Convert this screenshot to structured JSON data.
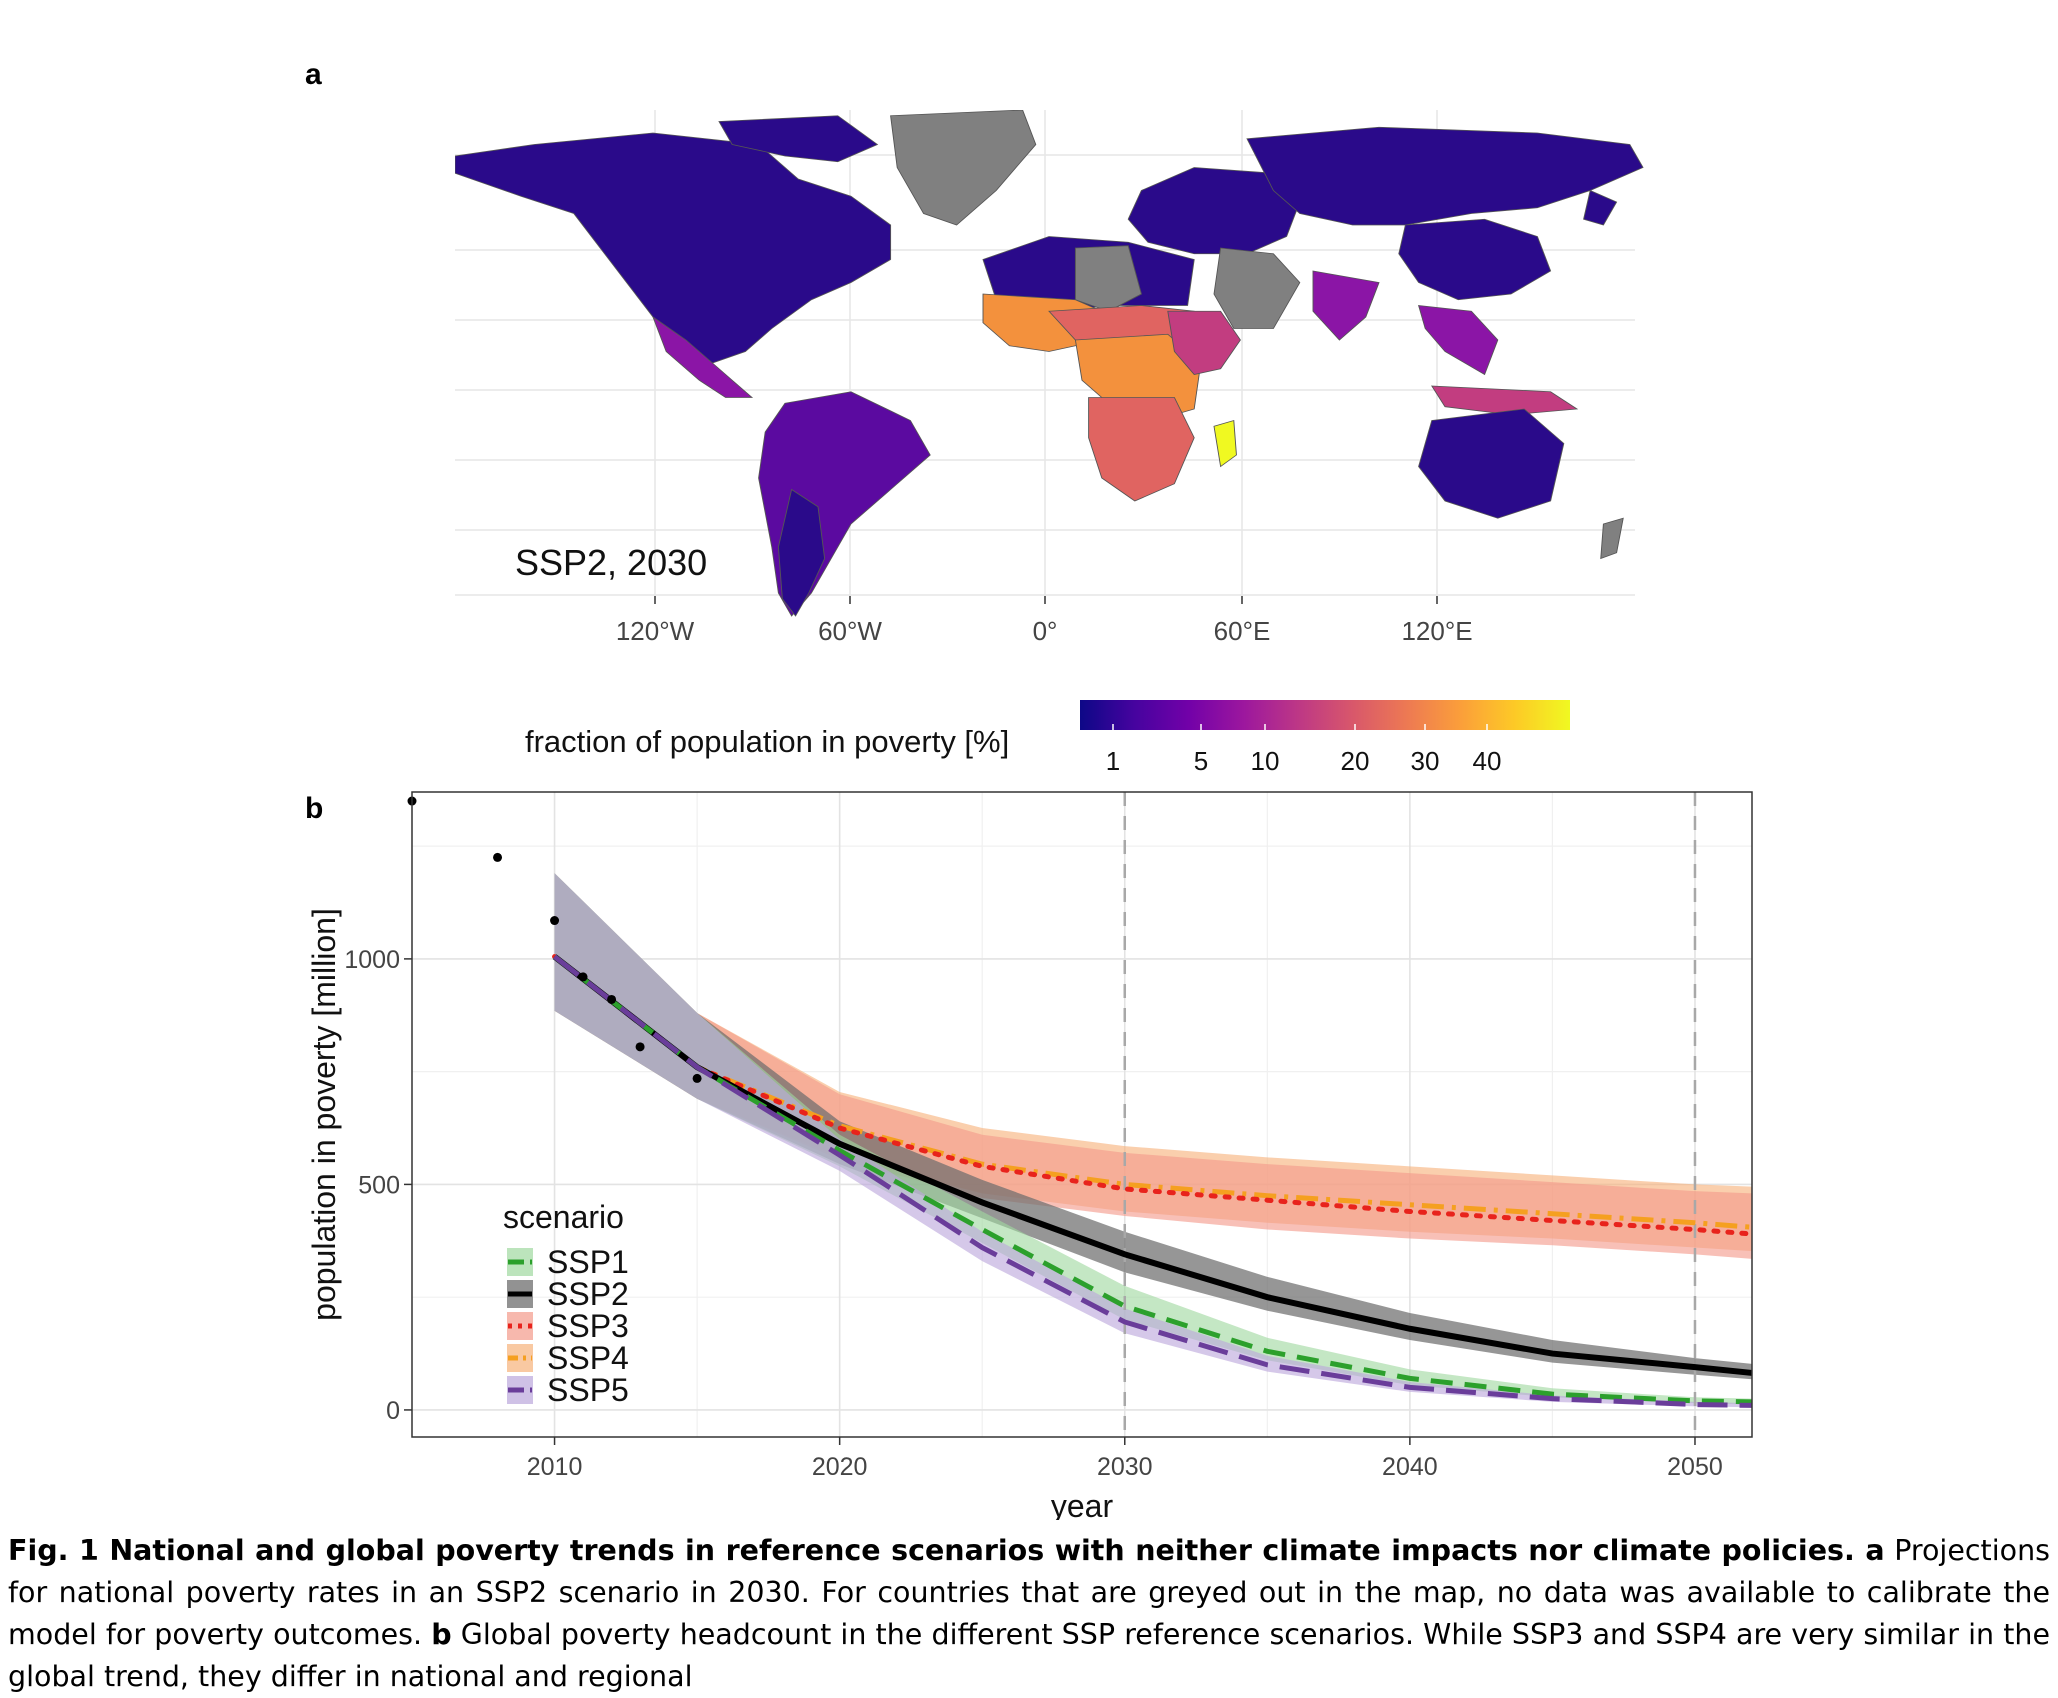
{
  "panel_a": {
    "letter": "a",
    "annotation": "SSP2, 2030",
    "lon_ticks": [
      "120°W",
      "60°W",
      "0°",
      "60°E",
      "120°E"
    ],
    "colors": {
      "grey": "#808080",
      "dark": "#2a0a8a",
      "purple": "#5b0aa0",
      "magenta": "#8b15a6",
      "pink": "#c23d80",
      "coral": "#e06461",
      "orange": "#f3913d",
      "yellow": "#f0f921"
    },
    "colorbar": {
      "label": "fraction of population in poverty [%]",
      "ticks": [
        "1",
        "5",
        "10",
        "20",
        "30",
        "40"
      ],
      "stops": [
        "#0d0887",
        "#46039f",
        "#7201a8",
        "#9c179e",
        "#bd3786",
        "#d8576b",
        "#ed7953",
        "#fb9f3a",
        "#fdca26",
        "#f0f921"
      ]
    }
  },
  "panel_b": {
    "letter": "b"
  },
  "chart_data": {
    "type": "line",
    "title": "",
    "xlabel": "year",
    "ylabel": "population in poverty [million]",
    "xlim": [
      2005,
      2052
    ],
    "ylim": [
      -60,
      1370
    ],
    "x_ticks": [
      "2010",
      "2020",
      "2030",
      "2040",
      "2050"
    ],
    "x_tick_values": [
      2010,
      2020,
      2030,
      2040,
      2050
    ],
    "y_ticks": [
      "0",
      "500",
      "1000"
    ],
    "y_tick_values": [
      0,
      500,
      1000
    ],
    "vlines": [
      2030,
      2050
    ],
    "grid": true,
    "legend_title": "scenario",
    "legend_position": "bottom-left",
    "observed": {
      "x": [
        2005,
        2008,
        2010,
        2011,
        2012,
        2013,
        2015
      ],
      "y": [
        1350,
        1225,
        1085,
        960,
        910,
        805,
        735
      ]
    },
    "series": [
      {
        "name": "SSP4",
        "color": "#f5a020",
        "band_color": "#f7b27a",
        "x": [
          2010,
          2015,
          2020,
          2025,
          2030,
          2035,
          2040,
          2045,
          2050,
          2052
        ],
        "y": [
          1005,
          760,
          630,
          545,
          500,
          475,
          455,
          435,
          415,
          405
        ],
        "lower": [
          885,
          690,
          560,
          480,
          440,
          415,
          395,
          380,
          360,
          352
        ],
        "upper": [
          1185,
          880,
          705,
          625,
          585,
          560,
          540,
          520,
          500,
          495
        ]
      },
      {
        "name": "SSP3",
        "color": "#e8231c",
        "band_color": "#f39a8a",
        "x": [
          2010,
          2015,
          2020,
          2025,
          2030,
          2035,
          2040,
          2045,
          2050,
          2052
        ],
        "y": [
          1005,
          760,
          625,
          540,
          490,
          465,
          440,
          420,
          400,
          390
        ],
        "lower": [
          885,
          690,
          555,
          470,
          430,
          400,
          380,
          365,
          345,
          335
        ],
        "upper": [
          1190,
          880,
          700,
          610,
          570,
          545,
          525,
          505,
          485,
          480
        ]
      },
      {
        "name": "SSP2",
        "color": "#000000",
        "band_color": "#6e6e6e",
        "x": [
          2010,
          2015,
          2020,
          2025,
          2030,
          2035,
          2040,
          2045,
          2050,
          2052
        ],
        "y": [
          1005,
          760,
          590,
          460,
          345,
          250,
          180,
          125,
          95,
          82
        ],
        "lower": [
          885,
          690,
          545,
          425,
          305,
          220,
          155,
          105,
          78,
          68
        ],
        "upper": [
          1190,
          880,
          640,
          510,
          395,
          295,
          215,
          155,
          115,
          102
        ]
      },
      {
        "name": "SSP1",
        "color": "#2ca02c",
        "band_color": "#9fd89f",
        "x": [
          2010,
          2015,
          2020,
          2025,
          2030,
          2035,
          2040,
          2045,
          2050,
          2052
        ],
        "y": [
          1005,
          760,
          575,
          400,
          230,
          130,
          70,
          35,
          20,
          18
        ],
        "lower": [
          885,
          690,
          540,
          370,
          200,
          110,
          55,
          28,
          15,
          12
        ],
        "upper": [
          1190,
          880,
          610,
          440,
          275,
          160,
          90,
          48,
          28,
          25
        ]
      },
      {
        "name": "SSP5",
        "color": "#6a3d9a",
        "band_color": "#bba6dc",
        "x": [
          2010,
          2015,
          2020,
          2025,
          2030,
          2035,
          2040,
          2045,
          2050,
          2052
        ],
        "y": [
          1005,
          760,
          565,
          360,
          195,
          100,
          50,
          25,
          12,
          10
        ],
        "lower": [
          885,
          690,
          530,
          330,
          170,
          85,
          40,
          18,
          8,
          6
        ],
        "upper": [
          1190,
          880,
          600,
          395,
          225,
          120,
          62,
          32,
          18,
          15
        ]
      }
    ],
    "legend_order": [
      "SSP1",
      "SSP2",
      "SSP3",
      "SSP4",
      "SSP5"
    ]
  },
  "caption": {
    "label": "Fig. 1",
    "title": "National and global poverty trends in reference scenarios with neither climate impacts nor climate policies.",
    "a_label": "a",
    "a_text": "Projections for national poverty rates in an SSP2 scenario in 2030. For countries that are greyed out in the map, no data was available to calibrate the model for poverty outcomes.",
    "b_label": "b",
    "b_text": "Global poverty headcount in the different SSP reference scenarios. While SSP3 and SSP4 are very similar in the global trend, they differ in national and regional"
  }
}
